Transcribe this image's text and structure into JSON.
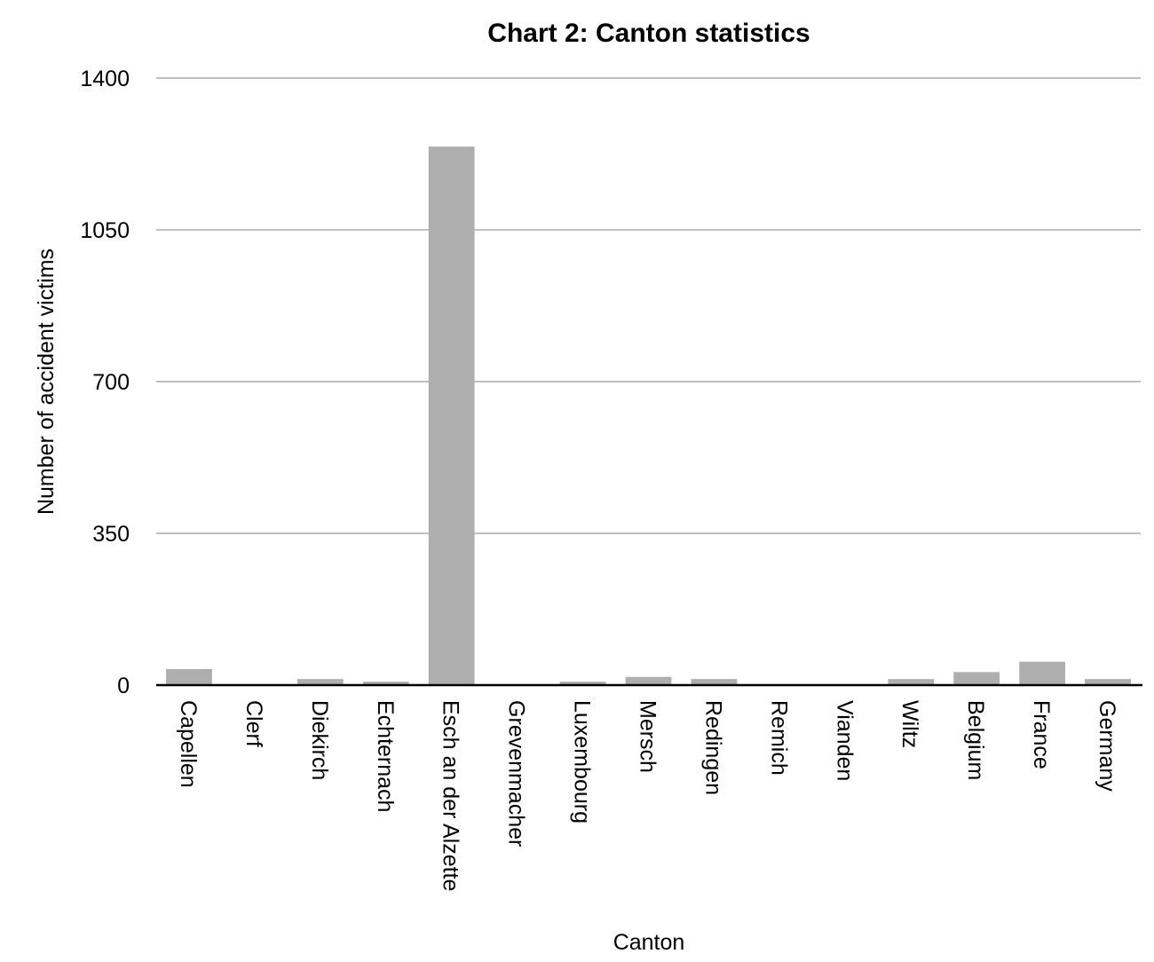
{
  "chart_data": {
    "type": "bar",
    "title": "Chart 2: Canton statistics",
    "xlabel": "Canton",
    "ylabel": "Number of accident victims",
    "ylim": [
      0,
      1400
    ],
    "yticks": [
      0,
      350,
      700,
      1050,
      1400
    ],
    "grid": true,
    "legend": "none",
    "bar_color": "#aeaeae",
    "categories": [
      "Capellen",
      "Clerf",
      "Diekirch",
      "Echternach",
      "Esch an der Alzette",
      "Grevenmacher",
      "Luxembourg",
      "Mersch",
      "Redingen",
      "Remich",
      "Vianden",
      "Wiltz",
      "Belgium",
      "France",
      "Germany"
    ],
    "values": [
      37,
      0,
      14,
      8,
      1242,
      0,
      8,
      19,
      14,
      0,
      0,
      14,
      30,
      54,
      14
    ]
  }
}
